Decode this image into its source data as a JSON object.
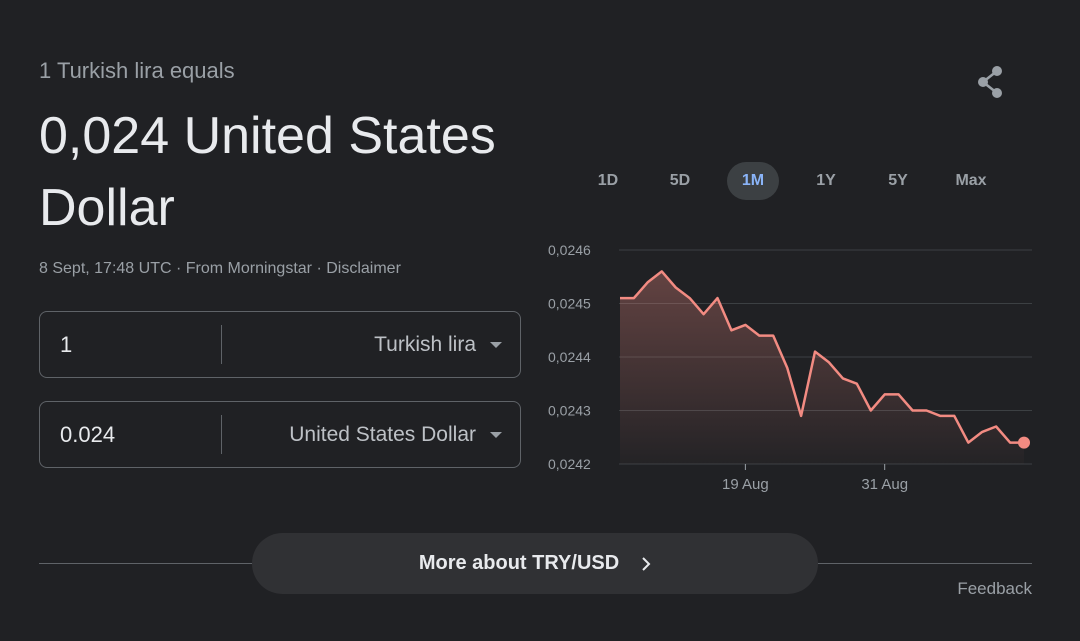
{
  "converter": {
    "equals_label": "1 Turkish lira equals",
    "result": "0,024 United States Dollar",
    "timestamp": "8 Sept, 17:48 UTC",
    "source": "From Morningstar",
    "disclaimer": "Disclaimer",
    "separator": "·",
    "from": {
      "amount": "1",
      "currency": "Turkish lira"
    },
    "to": {
      "amount": "0.024",
      "currency": "United States Dollar"
    }
  },
  "range_tabs": [
    {
      "label": "1D",
      "active": false
    },
    {
      "label": "5D",
      "active": false
    },
    {
      "label": "1M",
      "active": true
    },
    {
      "label": "1Y",
      "active": false
    },
    {
      "label": "5Y",
      "active": false
    },
    {
      "label": "Max",
      "active": false
    }
  ],
  "more_button": {
    "label": "More about TRY/USD"
  },
  "feedback_label": "Feedback",
  "icons": {
    "share": "share-icon",
    "more_chevron": "chevron-right-icon",
    "dropdown": "caret-down-icon"
  },
  "colors": {
    "background": "#202124",
    "line": "#f28b82",
    "active_tab_text": "#8ab4f8",
    "active_tab_bg": "#3c4043"
  },
  "chart_data": {
    "type": "area",
    "title": "",
    "xlabel": "",
    "ylabel": "",
    "x_tick_labels": [
      {
        "label": "19 Aug",
        "index": 9
      },
      {
        "label": "31 Aug",
        "index": 19
      }
    ],
    "y_ticks": [
      0.0246,
      0.0245,
      0.0244,
      0.0243,
      0.0242
    ],
    "y_tick_labels": [
      "0,0246",
      "0,0245",
      "0,0244",
      "0,0243",
      "0,0242"
    ],
    "ylim": [
      0.0242,
      0.0246
    ],
    "grid": true,
    "legend": false,
    "series": [
      {
        "values": [
          0.02451,
          0.02451,
          0.02454,
          0.02456,
          0.02453,
          0.02451,
          0.02448,
          0.02451,
          0.02445,
          0.02446,
          0.02444,
          0.02444,
          0.02438,
          0.02429,
          0.02441,
          0.02439,
          0.02436,
          0.02435,
          0.0243,
          0.02433,
          0.02433,
          0.0243,
          0.0243,
          0.02429,
          0.02429,
          0.02424,
          0.02426,
          0.02427,
          0.02424,
          0.02424
        ]
      }
    ]
  }
}
